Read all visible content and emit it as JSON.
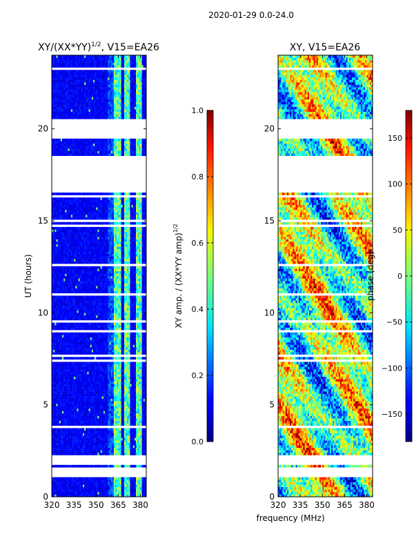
{
  "figure": {
    "suptitle": "2020-01-29 0.0-24.0",
    "xlabel": "frequency (MHz)"
  },
  "chart_data": [
    {
      "type": "heatmap",
      "title_main": "XY/(XX*YY)",
      "title_sup": "1/2",
      "title_rest": ", V15=EA26",
      "xlabel": "frequency (MHz)",
      "ylabel": "UT (hours)",
      "xlim": [
        320,
        384
      ],
      "ylim": [
        0,
        24
      ],
      "xticks": [
        320,
        335,
        350,
        365,
        380
      ],
      "yticks": [
        0,
        5,
        10,
        15,
        20
      ],
      "colormap": "jet",
      "colorbar": {
        "label_main": "XY amp. / (XX*YY amp)",
        "label_sup": "1/2",
        "range": [
          0.0,
          1.0
        ],
        "ticks": [
          "0.0",
          "0.2",
          "0.4",
          "0.6",
          "0.8",
          "1.0"
        ],
        "tick_values": [
          0.0,
          0.2,
          0.4,
          0.6,
          0.8,
          1.0
        ]
      },
      "flagged_hours": [
        [
          1.1,
          1.6
        ],
        [
          1.7,
          2.3
        ],
        [
          16.5,
          18.6
        ],
        [
          19.6,
          20.6
        ]
      ],
      "features": "mostly low amplitude (~0.0-0.2) below 360 MHz; elevated amplitude (~0.3-0.6) in bands near 362-367, 369-373 and 377-381 MHz"
    },
    {
      "type": "heatmap",
      "title": "XY, V15=EA26",
      "xlim": [
        320,
        384
      ],
      "ylim": [
        0,
        24
      ],
      "xticks": [
        320,
        335,
        350,
        365,
        380
      ],
      "yticks": [
        0,
        5,
        10,
        15,
        20
      ],
      "colormap": "jet",
      "colorbar": {
        "label": "phase (deg)",
        "range": [
          -180,
          180
        ],
        "ticks": [
          "150",
          "100",
          "50",
          "0",
          "−50",
          "−100",
          "−150"
        ],
        "tick_values": [
          150,
          100,
          50,
          0,
          -50,
          -100,
          -150
        ]
      },
      "flagged_hours": [
        [
          1.1,
          1.6
        ],
        [
          1.7,
          2.3
        ],
        [
          16.5,
          18.6
        ],
        [
          19.6,
          20.6
        ]
      ],
      "features": "phase varies across full -180 to 180 range with patchy structure"
    }
  ]
}
